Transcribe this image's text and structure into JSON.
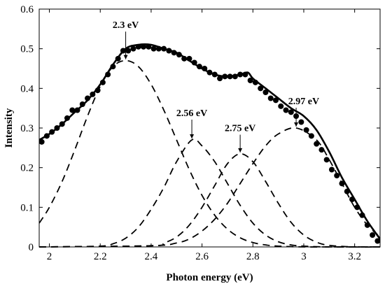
{
  "chart_data": {
    "type": "line",
    "title": "",
    "xlabel": "Photon energy (eV)",
    "ylabel": "Intensity",
    "xlim": [
      1.96,
      3.3
    ],
    "ylim": [
      0,
      0.6
    ],
    "grid": false,
    "x_ticks": [
      2,
      2.2,
      2.4,
      2.6,
      2.8,
      3,
      3.2
    ],
    "x_tick_labels": [
      "2",
      "2.2",
      "2.4",
      "2.6",
      "2.8",
      "3",
      "3.2"
    ],
    "y_ticks": [
      0,
      0.1,
      0.2,
      0.3,
      0.4,
      0.5,
      0.6
    ],
    "y_tick_labels": [
      "0",
      "0.1",
      "0.2",
      "0.3",
      "0.4",
      "0.5",
      "0.6"
    ],
    "series": [
      {
        "style": "markers",
        "color": "#000000",
        "x": [
          1.97,
          1.99,
          2.01,
          2.03,
          2.05,
          2.07,
          2.09,
          2.11,
          2.13,
          2.15,
          2.17,
          2.19,
          2.21,
          2.23,
          2.25,
          2.27,
          2.29,
          2.31,
          2.33,
          2.35,
          2.37,
          2.39,
          2.41,
          2.43,
          2.45,
          2.47,
          2.49,
          2.51,
          2.53,
          2.55,
          2.57,
          2.59,
          2.61,
          2.63,
          2.65,
          2.67,
          2.69,
          2.71,
          2.73,
          2.75,
          2.77,
          2.79,
          2.81,
          2.83,
          2.85,
          2.87,
          2.89,
          2.91,
          2.93,
          2.95,
          2.97,
          2.99,
          3.01,
          3.03,
          3.05,
          3.07,
          3.09,
          3.11,
          3.13,
          3.15,
          3.17,
          3.19,
          3.21,
          3.23,
          3.25,
          3.27,
          3.29
        ],
        "y": [
          0.265,
          0.28,
          0.29,
          0.3,
          0.31,
          0.325,
          0.345,
          0.345,
          0.36,
          0.375,
          0.385,
          0.395,
          0.415,
          0.435,
          0.455,
          0.475,
          0.495,
          0.495,
          0.5,
          0.505,
          0.505,
          0.505,
          0.5,
          0.5,
          0.5,
          0.495,
          0.49,
          0.485,
          0.475,
          0.475,
          0.465,
          0.455,
          0.45,
          0.44,
          0.435,
          0.425,
          0.43,
          0.43,
          0.43,
          0.435,
          0.435,
          0.42,
          0.415,
          0.4,
          0.39,
          0.375,
          0.37,
          0.355,
          0.345,
          0.34,
          0.33,
          0.315,
          0.295,
          0.28,
          0.26,
          0.245,
          0.22,
          0.195,
          0.18,
          0.16,
          0.14,
          0.12,
          0.1,
          0.08,
          0.055,
          0.03,
          0.015
        ]
      },
      {
        "style": "solid",
        "color": "#000000",
        "x": [
          1.96,
          2.0,
          2.05,
          2.1,
          2.15,
          2.2,
          2.25,
          2.3,
          2.35,
          2.4,
          2.45,
          2.5,
          2.55,
          2.6,
          2.65,
          2.7,
          2.75,
          2.78,
          2.8,
          2.85,
          2.9,
          2.95,
          3.0,
          3.05,
          3.1,
          3.15,
          3.2,
          3.25,
          3.3
        ],
        "y": [
          0.27,
          0.285,
          0.31,
          0.34,
          0.37,
          0.41,
          0.46,
          0.5,
          0.51,
          0.51,
          0.5,
          0.49,
          0.47,
          0.45,
          0.435,
          0.43,
          0.435,
          0.44,
          0.425,
          0.4,
          0.375,
          0.35,
          0.33,
          0.295,
          0.24,
          0.175,
          0.12,
          0.065,
          0.02
        ]
      },
      {
        "style": "dashed",
        "color": "#000000",
        "peak_x": 2.3,
        "peak_y": 0.47,
        "x": [
          1.96,
          2.0,
          2.05,
          2.1,
          2.15,
          2.2,
          2.25,
          2.3,
          2.35,
          2.4,
          2.45,
          2.5,
          2.55,
          2.6,
          2.65,
          2.7,
          2.75,
          2.8,
          2.85,
          2.9,
          3.0,
          3.1,
          3.2,
          3.3
        ],
        "y": [
          0.06,
          0.1,
          0.165,
          0.245,
          0.33,
          0.405,
          0.455,
          0.47,
          0.455,
          0.41,
          0.345,
          0.27,
          0.195,
          0.13,
          0.08,
          0.045,
          0.023,
          0.011,
          0.005,
          0.002,
          0,
          0,
          0,
          0
        ]
      },
      {
        "style": "dashed",
        "color": "#000000",
        "peak_x": 2.56,
        "peak_y": 0.27,
        "x": [
          1.96,
          2.2,
          2.25,
          2.3,
          2.35,
          2.4,
          2.45,
          2.5,
          2.56,
          2.6,
          2.65,
          2.7,
          2.75,
          2.8,
          2.85,
          2.9,
          2.95,
          3.0,
          3.1,
          3.3
        ],
        "y": [
          0,
          0.002,
          0.008,
          0.022,
          0.05,
          0.095,
          0.15,
          0.215,
          0.27,
          0.255,
          0.215,
          0.16,
          0.105,
          0.06,
          0.03,
          0.013,
          0.005,
          0.002,
          0,
          0
        ]
      },
      {
        "style": "dashed",
        "color": "#000000",
        "peak_x": 2.75,
        "peak_y": 0.235,
        "x": [
          1.96,
          2.4,
          2.45,
          2.5,
          2.55,
          2.6,
          2.65,
          2.7,
          2.75,
          2.8,
          2.85,
          2.9,
          2.95,
          3.0,
          3.05,
          3.1,
          3.2,
          3.3
        ],
        "y": [
          0,
          0.003,
          0.01,
          0.025,
          0.055,
          0.1,
          0.155,
          0.21,
          0.235,
          0.215,
          0.165,
          0.11,
          0.062,
          0.03,
          0.012,
          0.004,
          0,
          0
        ]
      },
      {
        "style": "dashed",
        "color": "#000000",
        "peak_x": 2.97,
        "peak_y": 0.3,
        "x": [
          1.96,
          2.4,
          2.5,
          2.55,
          2.6,
          2.65,
          2.7,
          2.75,
          2.8,
          2.85,
          2.9,
          2.97,
          3.05,
          3.1,
          3.15,
          3.2,
          3.25,
          3.3
        ],
        "y": [
          0,
          0.003,
          0.01,
          0.02,
          0.04,
          0.07,
          0.11,
          0.16,
          0.21,
          0.255,
          0.285,
          0.3,
          0.27,
          0.22,
          0.16,
          0.1,
          0.055,
          0.025
        ]
      }
    ],
    "annotations": [
      {
        "text": "2.3 eV",
        "x": 2.3,
        "y": 0.47,
        "label_x": 2.3,
        "label_y": 0.552,
        "arrow": true
      },
      {
        "text": "2.56 eV",
        "x": 2.56,
        "y": 0.27,
        "label_x": 2.56,
        "label_y": 0.33,
        "arrow": true
      },
      {
        "text": "2.75 eV",
        "x": 2.75,
        "y": 0.235,
        "label_x": 2.75,
        "label_y": 0.292,
        "arrow": true
      },
      {
        "text": "2.97 eV",
        "x": 2.97,
        "y": 0.3,
        "label_x": 3.0,
        "label_y": 0.36,
        "arrow": true
      }
    ]
  }
}
